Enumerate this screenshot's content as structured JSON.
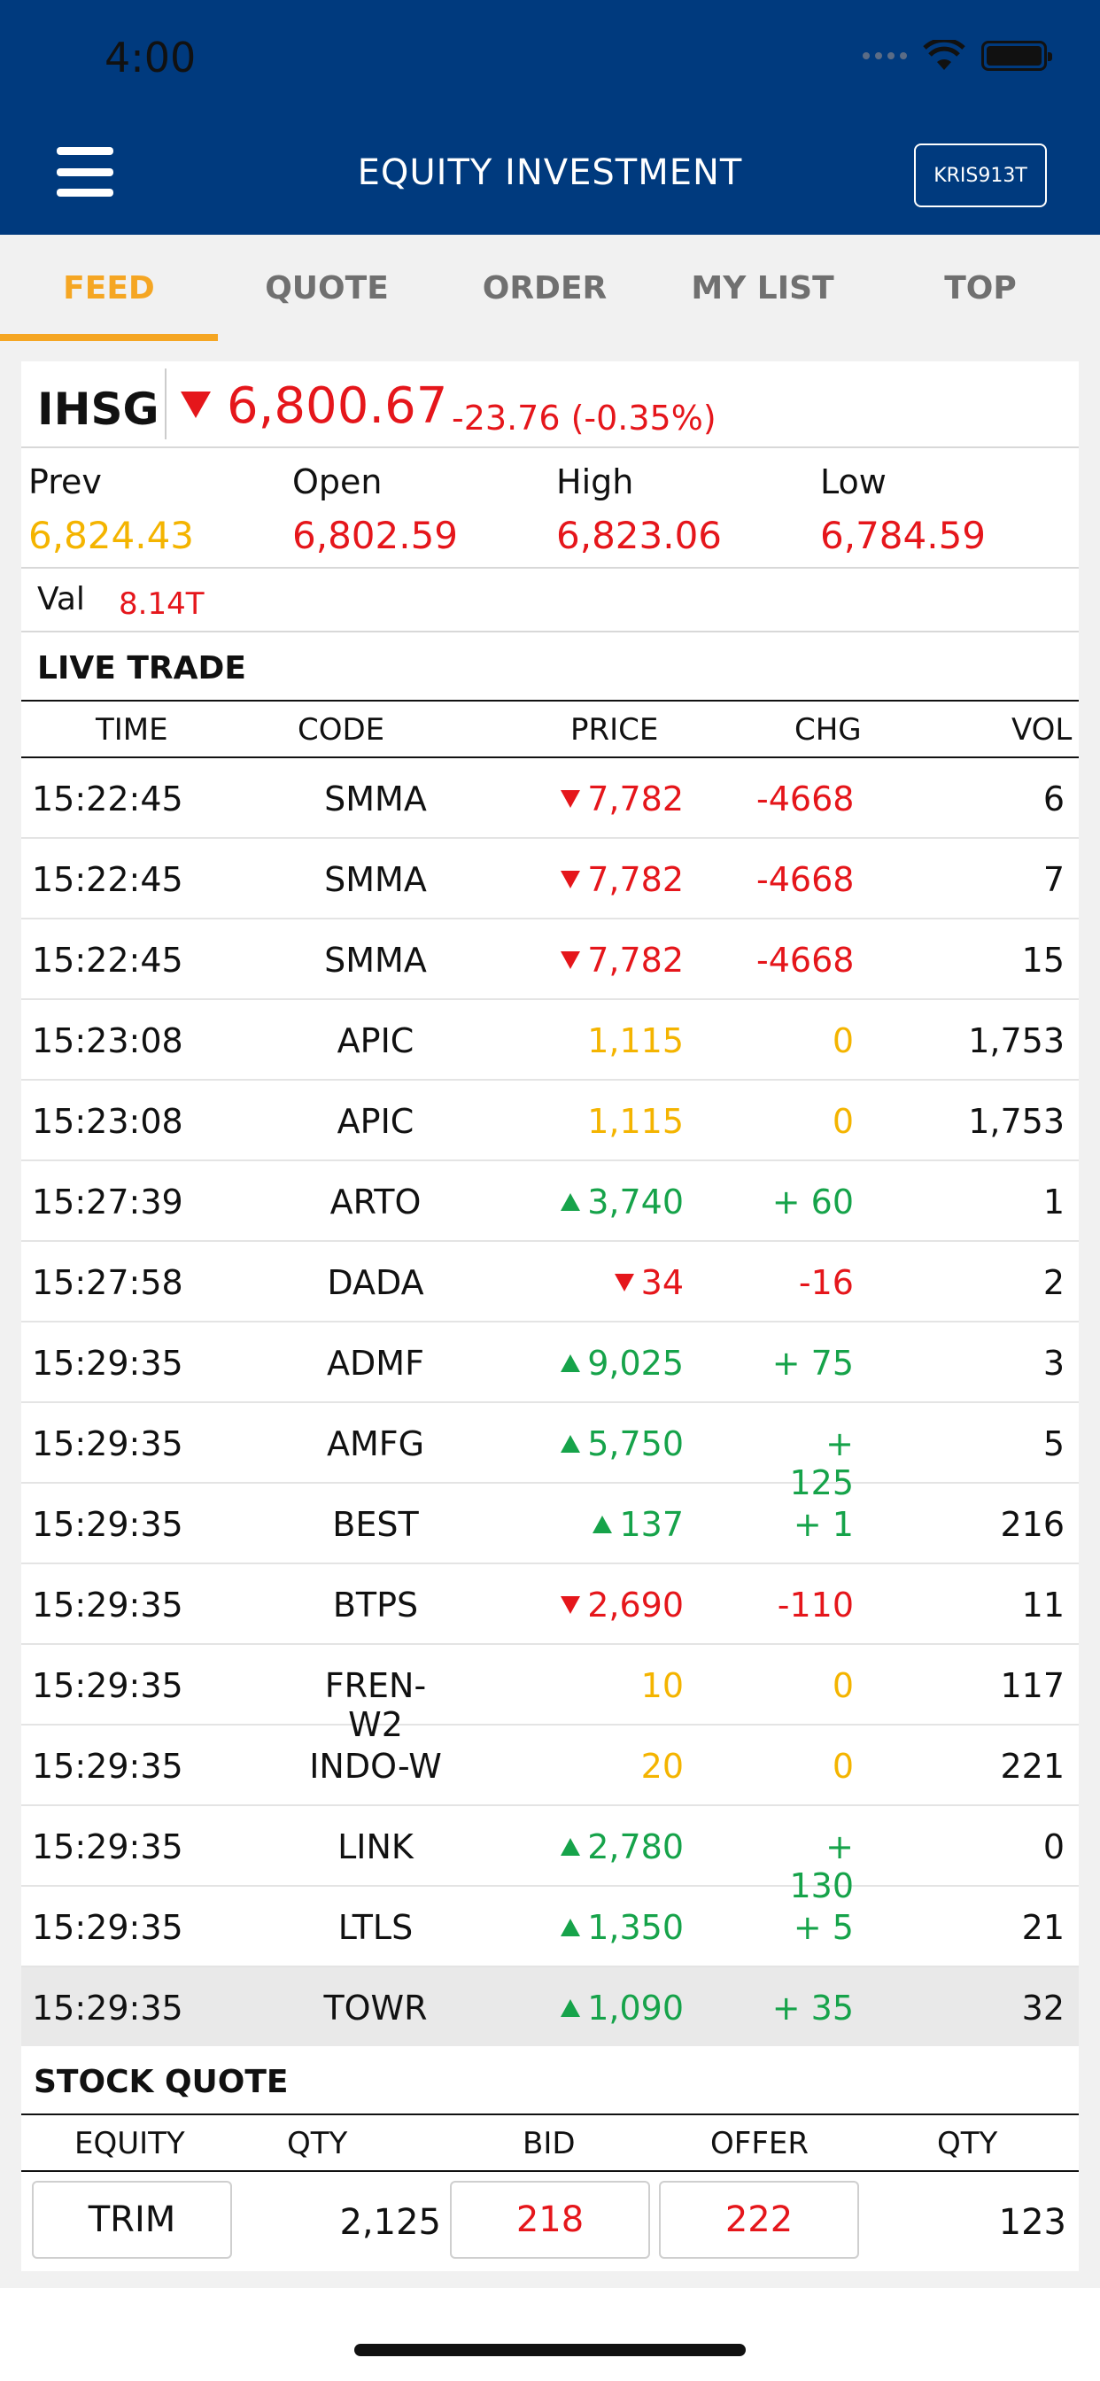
{
  "status_bar": {
    "time": "4:00"
  },
  "header": {
    "title": "EQUITY INVESTMENT",
    "account": "KRIS913T",
    "icons": [
      "menu-icon",
      "wifi-icon",
      "battery-icon"
    ]
  },
  "tabs": [
    {
      "label": "FEED",
      "active": true
    },
    {
      "label": "QUOTE",
      "active": false
    },
    {
      "label": "ORDER",
      "active": false
    },
    {
      "label": "MY LIST",
      "active": false
    },
    {
      "label": "TOP",
      "active": false
    }
  ],
  "index": {
    "name": "IHSG",
    "value": "6,800.67",
    "change": "-23.76 (-0.35%)",
    "direction": "down",
    "prev_label": "Prev",
    "prev": "6,824.43",
    "open_label": "Open",
    "open": "6,802.59",
    "high_label": "High",
    "high": "6,823.06",
    "low_label": "Low",
    "low": "6,784.59",
    "val_label": "Val",
    "val": "8.14T"
  },
  "live_trade": {
    "title": "LIVE TRADE",
    "headers": [
      "TIME",
      "CODE",
      "PRICE",
      "CHG",
      "VOL"
    ],
    "rows": [
      {
        "time": "15:22:45",
        "code": "SMMA",
        "price": "7,782",
        "chg": "-4668",
        "vol": "6",
        "dir": "down"
      },
      {
        "time": "15:22:45",
        "code": "SMMA",
        "price": "7,782",
        "chg": "-4668",
        "vol": "7",
        "dir": "down"
      },
      {
        "time": "15:22:45",
        "code": "SMMA",
        "price": "7,782",
        "chg": "-4668",
        "vol": "15",
        "dir": "down"
      },
      {
        "time": "15:23:08",
        "code": "APIC",
        "price": "1,115",
        "chg": "0",
        "vol": "1,753",
        "dir": "flat"
      },
      {
        "time": "15:23:08",
        "code": "APIC",
        "price": "1,115",
        "chg": "0",
        "vol": "1,753",
        "dir": "flat"
      },
      {
        "time": "15:27:39",
        "code": "ARTO",
        "price": "3,740",
        "chg": "+ 60",
        "vol": "1",
        "dir": "up"
      },
      {
        "time": "15:27:58",
        "code": "DADA",
        "price": "34",
        "chg": "-16",
        "vol": "2",
        "dir": "down"
      },
      {
        "time": "15:29:35",
        "code": "ADMF",
        "price": "9,025",
        "chg": "+ 75",
        "vol": "3",
        "dir": "up"
      },
      {
        "time": "15:29:35",
        "code": "AMFG",
        "price": "5,750",
        "chg": "+ 125",
        "vol": "5",
        "dir": "up"
      },
      {
        "time": "15:29:35",
        "code": "BEST",
        "price": "137",
        "chg": "+ 1",
        "vol": "216",
        "dir": "up"
      },
      {
        "time": "15:29:35",
        "code": "BTPS",
        "price": "2,690",
        "chg": "-110",
        "vol": "11",
        "dir": "down"
      },
      {
        "time": "15:29:35",
        "code": "FREN-W2",
        "price": "10",
        "chg": "0",
        "vol": "117",
        "dir": "flat"
      },
      {
        "time": "15:29:35",
        "code": "INDO-W",
        "price": "20",
        "chg": "0",
        "vol": "221",
        "dir": "flat"
      },
      {
        "time": "15:29:35",
        "code": "LINK",
        "price": "2,780",
        "chg": "+ 130",
        "vol": "0",
        "dir": "up"
      },
      {
        "time": "15:29:35",
        "code": "LTLS",
        "price": "1,350",
        "chg": "+ 5",
        "vol": "21",
        "dir": "up"
      },
      {
        "time": "15:29:35",
        "code": "TOWR",
        "price": "1,090",
        "chg": "+ 35",
        "vol": "32",
        "dir": "up"
      }
    ]
  },
  "stock_quote": {
    "title": "STOCK QUOTE",
    "headers": [
      "EQUITY",
      "QTY",
      "BID",
      "OFFER",
      "QTY"
    ],
    "equity": "TRIM",
    "bid_qty": "2,125",
    "bid": "218",
    "offer": "222",
    "offer_qty": "123"
  },
  "colors": {
    "header": "#003a7e",
    "accent": "#f5a623",
    "down": "#e5161b",
    "up": "#16a34a",
    "flat": "#f4b400"
  }
}
